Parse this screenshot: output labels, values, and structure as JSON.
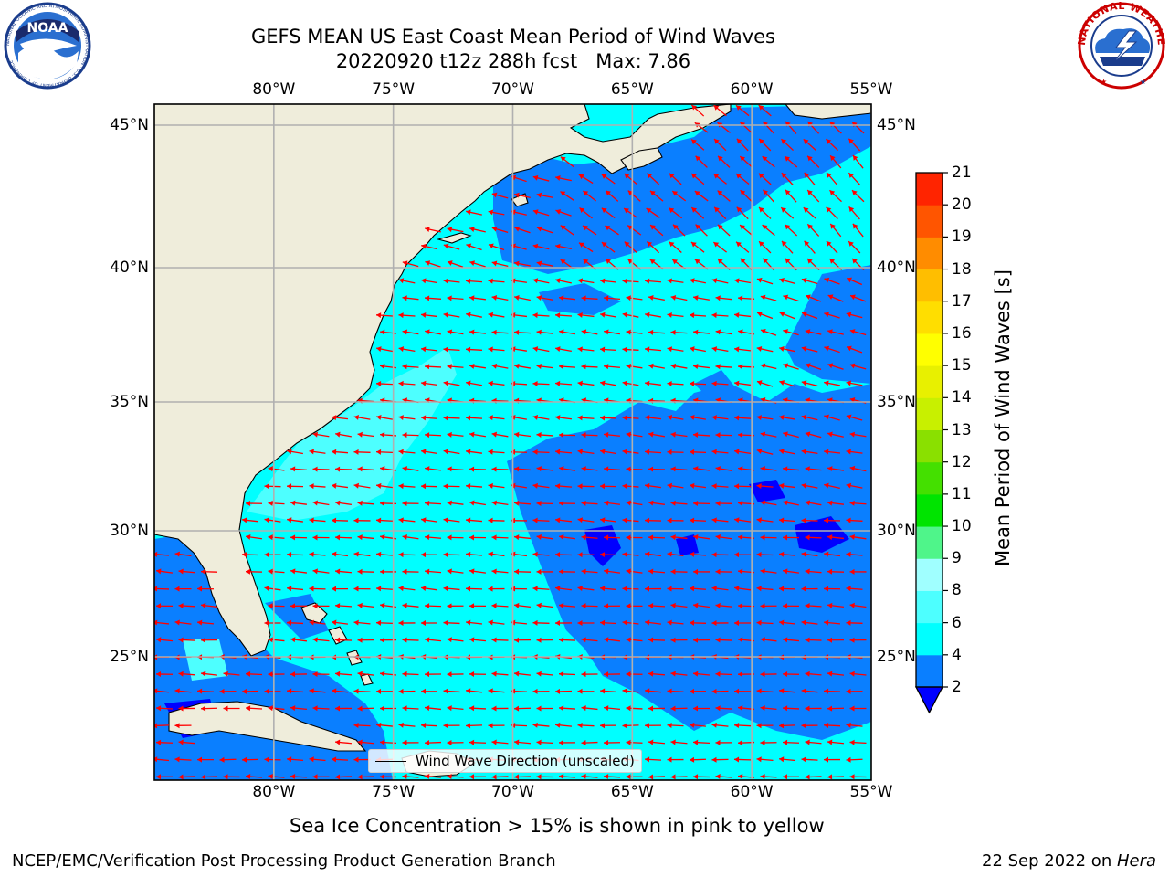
{
  "header": {
    "title_line1": "GEFS MEAN US East Coast Mean Period of Wind Waves",
    "title_line2": "20220920 t12z 288h fcst   Max: 7.86"
  },
  "logos": {
    "left": {
      "name": "noaa-logo",
      "text": "NOAA",
      "ring_text": "NATIONAL OCEANIC AND ATMOSPHERIC ADMINISTRATION · U.S. DEPARTMENT OF COMMERCE"
    },
    "right": {
      "name": "nws-logo",
      "ring_text": "NATIONAL WEATHER SERVICE"
    }
  },
  "map": {
    "lon_ticks": [
      "80°W",
      "75°W",
      "70°W",
      "65°W",
      "60°W",
      "55°W"
    ],
    "lat_ticks": [
      "45°N",
      "40°N",
      "35°N",
      "30°N",
      "25°N"
    ],
    "lon_values": [
      -80,
      -75,
      -70,
      -65,
      -60,
      -55
    ],
    "lat_values": [
      45,
      40,
      35,
      30,
      25
    ],
    "extent": {
      "lon_min": -85,
      "lon_max": -55,
      "lat_min": 20.5,
      "lat_max": 45.8
    },
    "legend_label": "Wind Wave Direction (unscaled)",
    "land_color": "#efeddb",
    "ocean_base_color": "#00ffff",
    "arrow_color": "#ff0000",
    "grid_color": "#b0b0b0"
  },
  "colorbar": {
    "title": "Mean Period of Wind Waves [s]",
    "ticks": [
      "2",
      "4",
      "6",
      "8",
      "9",
      "10",
      "11",
      "12",
      "13",
      "14",
      "15",
      "16",
      "17",
      "18",
      "19",
      "20",
      "21"
    ],
    "colors": [
      "#0a7fff",
      "#00ffff",
      "#4dffff",
      "#a0ffff",
      "#4ff58a",
      "#00e400",
      "#44e000",
      "#8ae000",
      "#c8f000",
      "#e8f000",
      "#ffff00",
      "#ffde00",
      "#ffbe00",
      "#ff8c00",
      "#ff5500",
      "#ff2400"
    ],
    "under_color": "#0000ff"
  },
  "notes": {
    "sea_ice": "Sea Ice Concentration > 15% is shown in pink to yellow"
  },
  "footer": {
    "left": "NCEP/EMC/Verification Post Processing Product Generation Branch",
    "date": "22 Sep 2022 on ",
    "machine": "Hera"
  }
}
